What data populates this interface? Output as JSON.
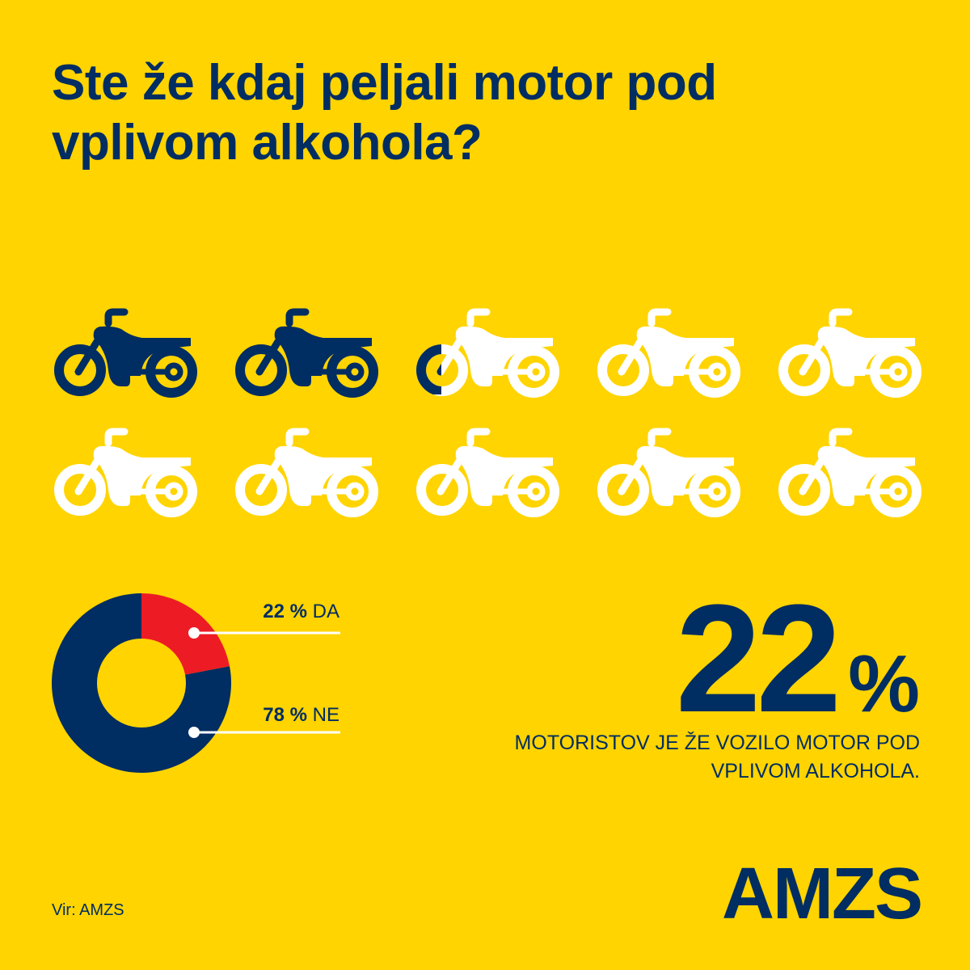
{
  "title": "Ste že kdaj peljali motor pod vplivom alkohola?",
  "colors": {
    "background": "#FFD400",
    "navy": "#002D62",
    "red": "#ED1C24",
    "white": "#FFFFFF"
  },
  "chart_data": [
    {
      "type": "pictogram",
      "icon": "motorcycle-icon",
      "total_icons": 10,
      "filled_value": 2.2,
      "filled_color": "#002D62",
      "empty_color": "#FFFFFF"
    },
    {
      "type": "pie",
      "donut": true,
      "slices": [
        {
          "label": "DA",
          "value": 22,
          "value_text": "22 %",
          "color": "#ED1C24"
        },
        {
          "label": "NE",
          "value": 78,
          "value_text": "78 %",
          "color": "#002D62"
        }
      ]
    }
  ],
  "highlight": {
    "value": "22",
    "unit": "%",
    "caption": "MOTORISTOV JE ŽE VOZILO MOTOR POD VPLIVOM ALKOHOLA."
  },
  "logo": "AMZS",
  "source": "Vir: AMZS"
}
